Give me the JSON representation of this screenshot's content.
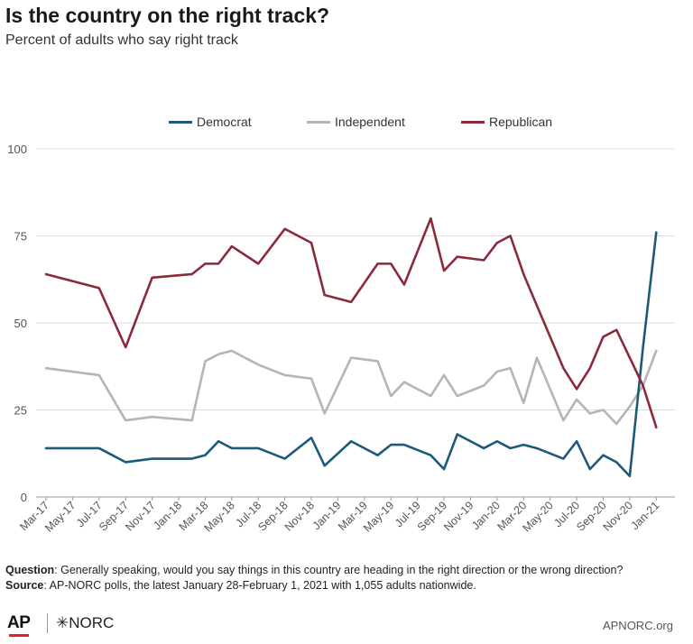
{
  "header": {
    "title": "Is the country on the right track?",
    "subtitle": "Percent of adults who say right track"
  },
  "footer": {
    "question_label": "Question",
    "question_text": ": Generally speaking, would you say things in this country are heading in the right direction or the wrong direction?",
    "source_label": "Source",
    "source_text": ": AP-NORC polls, the latest January 28-February 1, 2021 with 1,055 adults nationwide.",
    "logo_ap": "AP",
    "logo_norc": "NORC",
    "site": "APNORC.org"
  },
  "colors": {
    "Democrat": "#1d5a7a",
    "Independent": "#b5b5b5",
    "Republican": "#8b2a3a"
  },
  "chart_data": {
    "type": "line",
    "title": "Is the country on the right track?",
    "subtitle": "Percent of adults who say right track",
    "xlabel": "",
    "ylabel": "",
    "ylim": [
      0,
      100
    ],
    "yticks": [
      0,
      25,
      50,
      75,
      100
    ],
    "grid": true,
    "legend": "top-center",
    "x_ticks": [
      "Mar-17",
      "May-17",
      "Jul-17",
      "Sep-17",
      "Nov-17",
      "Jan-18",
      "Mar-18",
      "May-18",
      "Jul-18",
      "Sep-18",
      "Nov-18",
      "Jan-19",
      "Mar-19",
      "May-19",
      "Jul-19",
      "Sep-19",
      "Nov-19",
      "Jan-20",
      "Mar-20",
      "May-20",
      "Jul-20",
      "Sep-20",
      "Nov-20",
      "Jan-21"
    ],
    "x_range": [
      0,
      47
    ],
    "x": [
      0,
      4,
      6,
      8,
      11,
      12,
      13,
      14,
      16,
      18,
      20,
      21,
      23,
      25,
      26,
      27,
      29,
      30,
      31,
      33,
      34,
      35,
      36,
      37,
      39,
      40,
      41,
      42,
      43,
      44,
      45,
      46
    ],
    "series": [
      {
        "name": "Democrat",
        "values": [
          14,
          14,
          10,
          11,
          11,
          12,
          16,
          14,
          14,
          11,
          17,
          9,
          16,
          12,
          15,
          15,
          12,
          8,
          18,
          14,
          16,
          14,
          15,
          14,
          11,
          16,
          8,
          12,
          10,
          6,
          43,
          76
        ]
      },
      {
        "name": "Independent",
        "values": [
          37,
          35,
          22,
          23,
          22,
          39,
          41,
          42,
          38,
          35,
          34,
          24,
          40,
          39,
          29,
          33,
          29,
          35,
          29,
          32,
          36,
          37,
          27,
          40,
          22,
          28,
          24,
          25,
          21,
          26,
          32,
          42
        ]
      },
      {
        "name": "Republican",
        "values": [
          64,
          60,
          43,
          63,
          64,
          67,
          67,
          72,
          67,
          77,
          73,
          58,
          56,
          67,
          67,
          61,
          80,
          65,
          69,
          68,
          73,
          75,
          64,
          55,
          37,
          31,
          37,
          46,
          48,
          40,
          32,
          20
        ]
      }
    ]
  }
}
